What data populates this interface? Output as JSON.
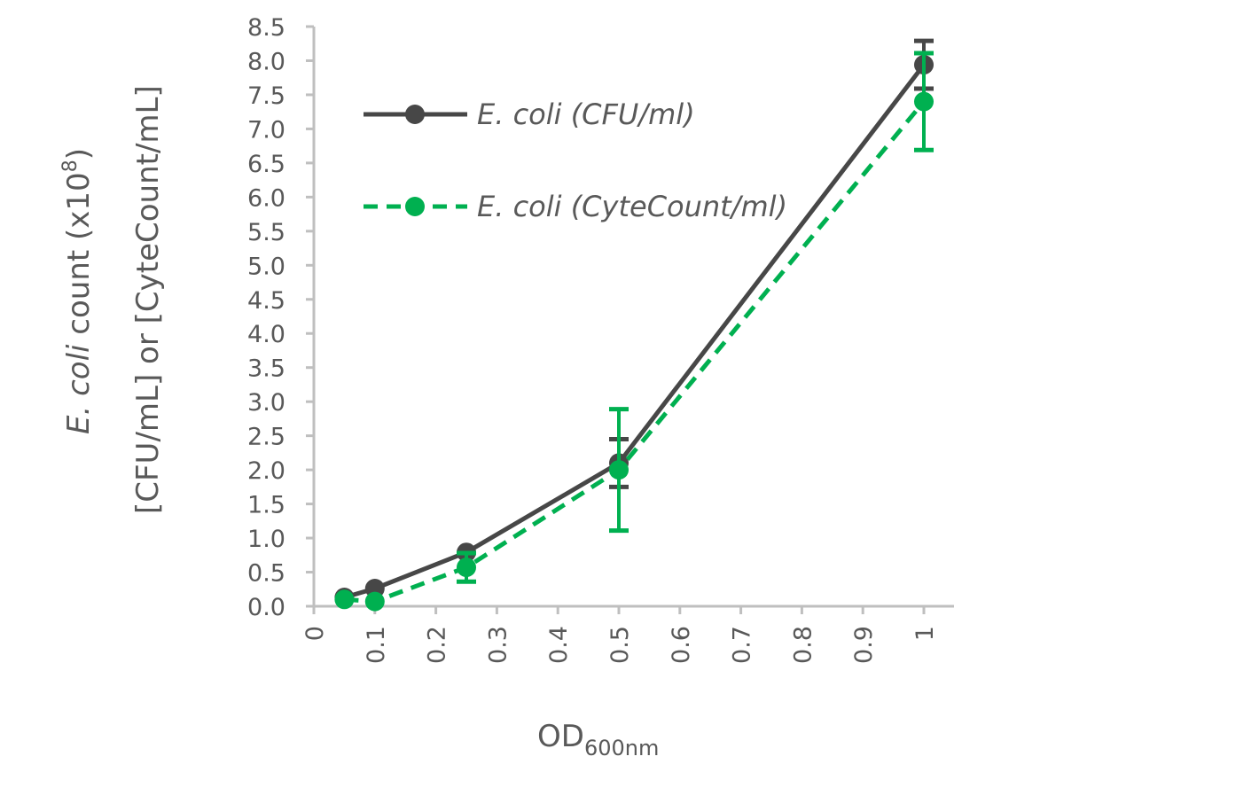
{
  "chart_data": {
    "type": "line",
    "title": "",
    "xlabel": "OD",
    "xlabel_sub": "600nm",
    "ylabel_line1_italic": "E. coli",
    "ylabel_line1_rest": " count (x10",
    "ylabel_line1_sup": "8",
    "ylabel_line1_end": ")",
    "ylabel_line2": "[CFU/mL] or [CyteCount/mL]",
    "xlim": [
      0,
      1
    ],
    "ylim": [
      0,
      8.5
    ],
    "x_ticks": [
      "0",
      "0.1",
      "0.2",
      "0.3",
      "0.4",
      "0.5",
      "0.6",
      "0.7",
      "0.8",
      "0.9",
      "1"
    ],
    "y_ticks": [
      "0.0",
      "0.5",
      "1.0",
      "1.5",
      "2.0",
      "2.5",
      "3.0",
      "3.5",
      "4.0",
      "4.5",
      "5.0",
      "5.5",
      "6.0",
      "6.5",
      "7.0",
      "7.5",
      "8.0",
      "8.5"
    ],
    "legend_position": "top-left",
    "grid": false,
    "series": [
      {
        "name": "E. coli (CFU/ml)",
        "color": "#474747",
        "dash": false,
        "x": [
          0.05,
          0.1,
          0.25,
          0.5,
          1
        ],
        "y": [
          0.13,
          0.26,
          0.79,
          2.1,
          7.94
        ],
        "err": [
          0,
          0,
          0,
          0.35,
          0.35
        ]
      },
      {
        "name": "E. coli (CyteCount/ml)",
        "color": "#00b050",
        "dash": true,
        "x": [
          0.05,
          0.1,
          0.25,
          0.5,
          1
        ],
        "y": [
          0.1,
          0.07,
          0.57,
          2.0,
          7.4
        ],
        "err": [
          0,
          0,
          0.21,
          0.89,
          0.71
        ]
      }
    ]
  }
}
